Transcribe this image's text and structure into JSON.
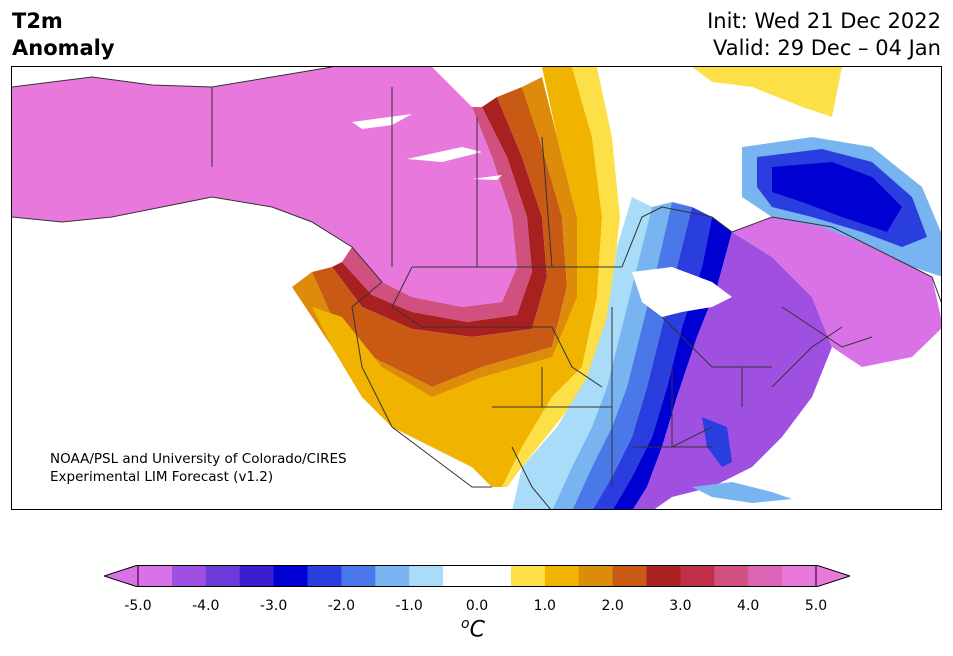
{
  "header": {
    "title_line1": "T2m",
    "title_line2": "Anomaly",
    "init_line": "Init: Wed 21 Dec 2022",
    "valid_line": "Valid: 29 Dec – 04 Jan"
  },
  "credit": {
    "line1": "NOAA/PSL and University of Colorado/CIRES",
    "line2": "Experimental LIM Forecast (v1.2)"
  },
  "colorbar": {
    "ticks": [
      "-5.0",
      "-4.0",
      "-3.0",
      "-2.0",
      "-1.0",
      "0.0",
      "1.0",
      "2.0",
      "3.0",
      "4.0",
      "5.0"
    ],
    "unit_super": "o",
    "unit": "C",
    "colors": [
      "#d972e6",
      "#a050e0",
      "#6a3cd8",
      "#3c1ed2",
      "#0000d2",
      "#2a3ee0",
      "#4a78e8",
      "#78b4f0",
      "#a8dcf8",
      "#ffffff",
      "#ffffff",
      "#fde048",
      "#f0b400",
      "#dc8c0a",
      "#c85a14",
      "#a82020",
      "#c0304a",
      "#d05080",
      "#dc64b4",
      "#e878dc"
    ],
    "under_color": "#d972e6",
    "over_color": "#e878dc"
  },
  "legend_colors": {
    "strong_warm": "#e878dc",
    "strong_cold": "#0000d2",
    "neutral": "#ffffff",
    "land_border": "#333333"
  }
}
